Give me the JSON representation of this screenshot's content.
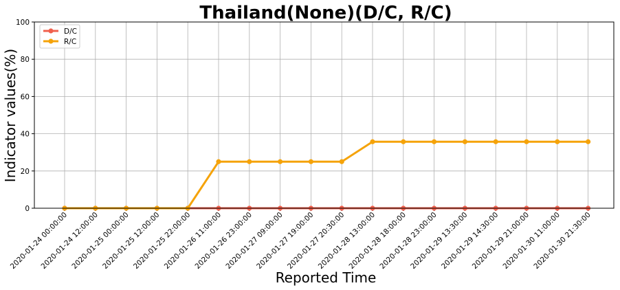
{
  "chart_data": {
    "type": "line",
    "title": "Thailand(None)(D/C, R/C)",
    "xlabel": "Reported Time",
    "ylabel": "Indicator values(%)",
    "ylim": [
      0,
      100
    ],
    "yticks": [
      0,
      20,
      40,
      60,
      80,
      100
    ],
    "grid": true,
    "legend_position": "top-left",
    "categories": [
      "2020-01-24 00:00:00",
      "2020-01-24 12:00:00",
      "2020-01-25 00:00:00",
      "2020-01-25 12:00:00",
      "2020-01-25 22:00:00",
      "2020-01-26 11:00:00",
      "2020-01-26 23:00:00",
      "2020-01-27 09:00:00",
      "2020-01-27 19:00:00",
      "2020-01-27 20:30:00",
      "2020-01-28 13:00:00",
      "2020-01-28 18:00:00",
      "2020-01-28 23:00:00",
      "2020-01-29 13:30:00",
      "2020-01-29 14:30:00",
      "2020-01-29 21:00:00",
      "2020-01-30 11:00:00",
      "2020-01-30 21:30:00"
    ],
    "series": [
      {
        "name": "D/C",
        "color": "#f0604d",
        "values": [
          0,
          0,
          0,
          0,
          0,
          0,
          0,
          0,
          0,
          0,
          0,
          0,
          0,
          0,
          0,
          0,
          0,
          0
        ]
      },
      {
        "name": "R/C",
        "color": "#f5a30a",
        "values": [
          0,
          0,
          0,
          0,
          0,
          25,
          25,
          25,
          25,
          25,
          35.7,
          35.7,
          35.7,
          35.7,
          35.7,
          35.7,
          35.7,
          35.7
        ]
      }
    ]
  }
}
